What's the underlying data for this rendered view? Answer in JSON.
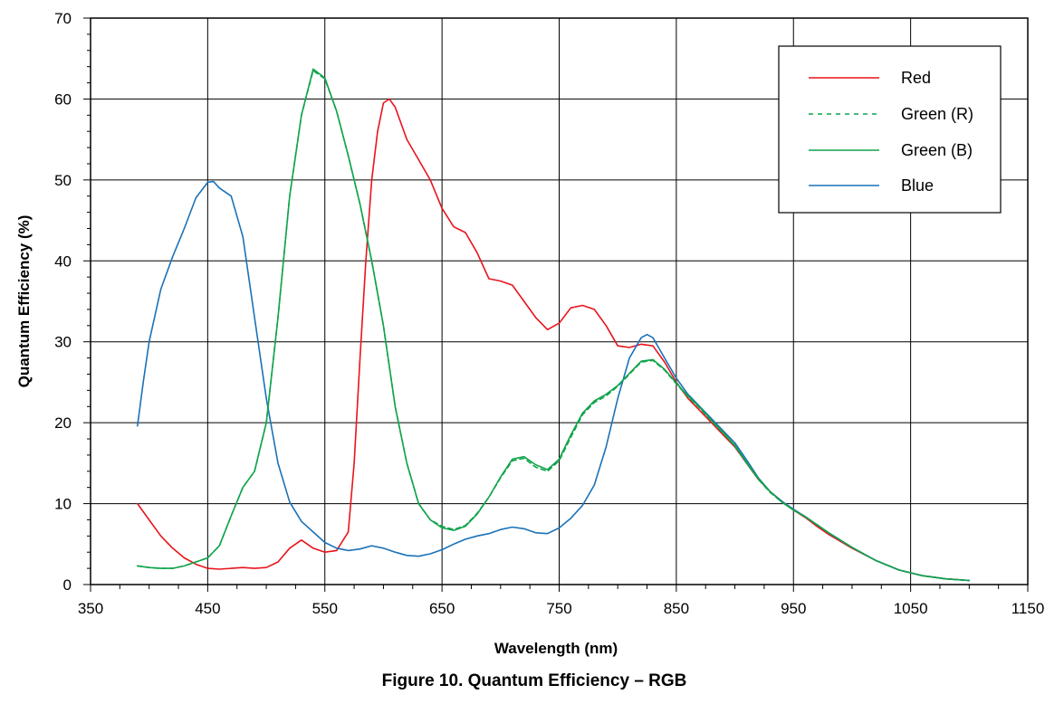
{
  "figure_caption": "Figure 10. Quantum Efficiency – RGB",
  "colors": {
    "red": "#e8141c",
    "green": "#11a44c",
    "blue": "#1a72b8",
    "grid": "#000000"
  },
  "chart_data": {
    "type": "line",
    "title": "",
    "xlabel": "Wavelength (nm)",
    "ylabel": "Quantum Efficiency (%)",
    "xlim": [
      350,
      1150
    ],
    "ylim": [
      0,
      70
    ],
    "x_major_ticks": [
      350,
      450,
      550,
      650,
      750,
      850,
      950,
      1050,
      1150
    ],
    "y_major_ticks": [
      0,
      10,
      20,
      30,
      40,
      50,
      60,
      70
    ],
    "x_tick_labels": [
      "350",
      "450",
      "550",
      "650",
      "750",
      "850",
      "950",
      "1050",
      "1150"
    ],
    "y_tick_labels": [
      "0",
      "10",
      "20",
      "30",
      "40",
      "50",
      "60",
      "70"
    ],
    "grid": true,
    "legend_position": "top-right",
    "series": [
      {
        "name": "Red",
        "color": "#e8141c",
        "dash": "solid",
        "points": [
          [
            390,
            10
          ],
          [
            400,
            8
          ],
          [
            410,
            6
          ],
          [
            420,
            4.5
          ],
          [
            430,
            3.3
          ],
          [
            440,
            2.5
          ],
          [
            450,
            2
          ],
          [
            460,
            1.9
          ],
          [
            470,
            2
          ],
          [
            480,
            2.1
          ],
          [
            490,
            2
          ],
          [
            500,
            2.1
          ],
          [
            510,
            2.8
          ],
          [
            520,
            4.5
          ],
          [
            530,
            5.5
          ],
          [
            540,
            4.5
          ],
          [
            550,
            4
          ],
          [
            560,
            4.2
          ],
          [
            570,
            6.5
          ],
          [
            575,
            15
          ],
          [
            580,
            28
          ],
          [
            585,
            40
          ],
          [
            590,
            50
          ],
          [
            595,
            56
          ],
          [
            600,
            59.5
          ],
          [
            605,
            60
          ],
          [
            610,
            59
          ],
          [
            620,
            55
          ],
          [
            630,
            52.5
          ],
          [
            640,
            50
          ],
          [
            650,
            46.5
          ],
          [
            660,
            44.2
          ],
          [
            670,
            43.5
          ],
          [
            680,
            41
          ],
          [
            690,
            37.8
          ],
          [
            700,
            37.5
          ],
          [
            710,
            37
          ],
          [
            720,
            35
          ],
          [
            730,
            33
          ],
          [
            740,
            31.5
          ],
          [
            750,
            32.3
          ],
          [
            760,
            34.2
          ],
          [
            770,
            34.5
          ],
          [
            780,
            34
          ],
          [
            790,
            32
          ],
          [
            800,
            29.5
          ],
          [
            810,
            29.3
          ],
          [
            820,
            29.7
          ],
          [
            830,
            29.5
          ],
          [
            840,
            27.5
          ],
          [
            850,
            25
          ],
          [
            860,
            23
          ],
          [
            870,
            21.5
          ],
          [
            880,
            20
          ],
          [
            890,
            18.5
          ],
          [
            900,
            17
          ],
          [
            910,
            15
          ],
          [
            920,
            13
          ],
          [
            930,
            11.5
          ],
          [
            940,
            10.3
          ],
          [
            950,
            9.2
          ],
          [
            960,
            8.3
          ],
          [
            970,
            7.2
          ],
          [
            980,
            6.2
          ],
          [
            1000,
            4.5
          ],
          [
            1020,
            3
          ],
          [
            1040,
            1.8
          ],
          [
            1060,
            1.1
          ],
          [
            1080,
            0.7
          ],
          [
            1100,
            0.5
          ]
        ]
      },
      {
        "name": "Green (R)",
        "color": "#11a44c",
        "dash": "dashed",
        "points": [
          [
            390,
            2.3
          ],
          [
            400,
            2.1
          ],
          [
            410,
            2
          ],
          [
            420,
            2
          ],
          [
            430,
            2.3
          ],
          [
            440,
            2.8
          ],
          [
            450,
            3.3
          ],
          [
            460,
            4.8
          ],
          [
            470,
            8.5
          ],
          [
            480,
            12
          ],
          [
            490,
            14
          ],
          [
            500,
            20
          ],
          [
            510,
            33
          ],
          [
            520,
            48
          ],
          [
            530,
            58
          ],
          [
            540,
            63.5
          ],
          [
            550,
            62.5
          ],
          [
            560,
            58.5
          ],
          [
            570,
            53
          ],
          [
            580,
            47
          ],
          [
            590,
            40
          ],
          [
            600,
            32
          ],
          [
            610,
            22
          ],
          [
            620,
            15
          ],
          [
            630,
            10
          ],
          [
            640,
            8
          ],
          [
            650,
            7.2
          ],
          [
            660,
            6.8
          ],
          [
            670,
            7.3
          ],
          [
            680,
            8.8
          ],
          [
            690,
            10.8
          ],
          [
            700,
            13.2
          ],
          [
            710,
            15.3
          ],
          [
            720,
            15.6
          ],
          [
            730,
            14.5
          ],
          [
            740,
            14
          ],
          [
            750,
            15.3
          ],
          [
            760,
            18.2
          ],
          [
            770,
            21
          ],
          [
            780,
            22.5
          ],
          [
            790,
            23.3
          ],
          [
            800,
            24.5
          ],
          [
            810,
            26
          ],
          [
            820,
            27.5
          ],
          [
            830,
            27.7
          ],
          [
            840,
            26.5
          ],
          [
            850,
            24.8
          ],
          [
            860,
            23.2
          ],
          [
            870,
            21.8
          ],
          [
            880,
            20.2
          ],
          [
            890,
            18.7
          ],
          [
            900,
            17.1
          ],
          [
            910,
            15
          ],
          [
            920,
            13
          ],
          [
            930,
            11.4
          ],
          [
            940,
            10.2
          ],
          [
            950,
            9.2
          ],
          [
            960,
            8.4
          ],
          [
            970,
            7.4
          ],
          [
            980,
            6.4
          ],
          [
            1000,
            4.6
          ],
          [
            1020,
            3
          ],
          [
            1040,
            1.8
          ],
          [
            1060,
            1.1
          ],
          [
            1080,
            0.7
          ],
          [
            1100,
            0.5
          ]
        ]
      },
      {
        "name": "Green (B)",
        "color": "#11a44c",
        "dash": "solid",
        "points": [
          [
            390,
            2.3
          ],
          [
            400,
            2.1
          ],
          [
            410,
            2
          ],
          [
            420,
            2
          ],
          [
            430,
            2.3
          ],
          [
            440,
            2.8
          ],
          [
            450,
            3.3
          ],
          [
            460,
            4.8
          ],
          [
            470,
            8.5
          ],
          [
            480,
            12
          ],
          [
            490,
            14
          ],
          [
            500,
            20
          ],
          [
            510,
            33
          ],
          [
            520,
            48
          ],
          [
            530,
            58
          ],
          [
            540,
            63.7
          ],
          [
            550,
            62.6
          ],
          [
            560,
            58.5
          ],
          [
            570,
            53
          ],
          [
            580,
            47
          ],
          [
            590,
            40
          ],
          [
            600,
            32
          ],
          [
            610,
            22
          ],
          [
            620,
            15
          ],
          [
            630,
            10
          ],
          [
            640,
            8
          ],
          [
            650,
            7
          ],
          [
            660,
            6.7
          ],
          [
            670,
            7.2
          ],
          [
            680,
            8.7
          ],
          [
            690,
            10.8
          ],
          [
            700,
            13.3
          ],
          [
            710,
            15.5
          ],
          [
            720,
            15.8
          ],
          [
            730,
            14.8
          ],
          [
            740,
            14.2
          ],
          [
            750,
            15.5
          ],
          [
            760,
            18.5
          ],
          [
            770,
            21.2
          ],
          [
            780,
            22.7
          ],
          [
            790,
            23.5
          ],
          [
            800,
            24.6
          ],
          [
            810,
            26.1
          ],
          [
            820,
            27.6
          ],
          [
            830,
            27.8
          ],
          [
            840,
            26.6
          ],
          [
            850,
            24.9
          ],
          [
            860,
            23.3
          ],
          [
            870,
            21.9
          ],
          [
            880,
            20.3
          ],
          [
            890,
            18.8
          ],
          [
            900,
            17.2
          ],
          [
            910,
            15.1
          ],
          [
            920,
            13.1
          ],
          [
            930,
            11.5
          ],
          [
            940,
            10.2
          ],
          [
            950,
            9.2
          ],
          [
            960,
            8.4
          ],
          [
            970,
            7.4
          ],
          [
            980,
            6.4
          ],
          [
            1000,
            4.6
          ],
          [
            1020,
            3
          ],
          [
            1040,
            1.8
          ],
          [
            1060,
            1.1
          ],
          [
            1080,
            0.7
          ],
          [
            1100,
            0.5
          ]
        ]
      },
      {
        "name": "Blue",
        "color": "#1a72b8",
        "dash": "solid",
        "points": [
          [
            390,
            19.6
          ],
          [
            395,
            25
          ],
          [
            400,
            30
          ],
          [
            410,
            36.5
          ],
          [
            420,
            40.5
          ],
          [
            430,
            44
          ],
          [
            440,
            47.8
          ],
          [
            450,
            49.7
          ],
          [
            455,
            49.8
          ],
          [
            460,
            49
          ],
          [
            470,
            48
          ],
          [
            480,
            43
          ],
          [
            490,
            33
          ],
          [
            500,
            23
          ],
          [
            510,
            15
          ],
          [
            520,
            10.2
          ],
          [
            530,
            7.8
          ],
          [
            540,
            6.5
          ],
          [
            550,
            5.2
          ],
          [
            560,
            4.5
          ],
          [
            570,
            4.2
          ],
          [
            580,
            4.4
          ],
          [
            590,
            4.8
          ],
          [
            600,
            4.5
          ],
          [
            610,
            4
          ],
          [
            620,
            3.6
          ],
          [
            630,
            3.5
          ],
          [
            640,
            3.8
          ],
          [
            650,
            4.3
          ],
          [
            660,
            5
          ],
          [
            670,
            5.6
          ],
          [
            680,
            6
          ],
          [
            690,
            6.3
          ],
          [
            700,
            6.8
          ],
          [
            710,
            7.1
          ],
          [
            720,
            6.9
          ],
          [
            730,
            6.4
          ],
          [
            740,
            6.3
          ],
          [
            750,
            7
          ],
          [
            760,
            8.2
          ],
          [
            770,
            9.8
          ],
          [
            780,
            12.3
          ],
          [
            790,
            17
          ],
          [
            800,
            23
          ],
          [
            810,
            28
          ],
          [
            820,
            30.5
          ],
          [
            825,
            30.9
          ],
          [
            830,
            30.5
          ],
          [
            840,
            28
          ],
          [
            850,
            25.5
          ],
          [
            860,
            23.5
          ],
          [
            870,
            22
          ],
          [
            880,
            20.5
          ],
          [
            890,
            19
          ],
          [
            900,
            17.5
          ],
          [
            910,
            15.4
          ],
          [
            920,
            13.2
          ],
          [
            930,
            11.5
          ],
          [
            940,
            10.3
          ],
          [
            950,
            9.3
          ],
          [
            960,
            8.4
          ],
          [
            970,
            7.4
          ],
          [
            980,
            6.4
          ],
          [
            1000,
            4.6
          ],
          [
            1020,
            3
          ],
          [
            1040,
            1.8
          ],
          [
            1060,
            1.1
          ],
          [
            1080,
            0.7
          ],
          [
            1100,
            0.5
          ]
        ]
      }
    ]
  }
}
